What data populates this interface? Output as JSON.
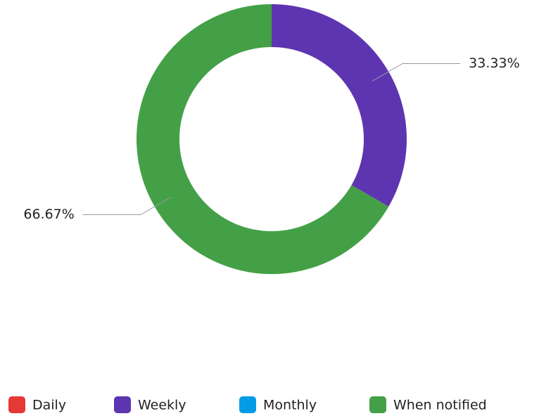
{
  "chart_data": {
    "type": "donut",
    "categories": [
      "Daily",
      "Weekly",
      "Monthly",
      "When notified"
    ],
    "values": [
      0,
      33.33,
      0,
      66.67
    ],
    "value_labels": [
      null,
      "33.33%",
      null,
      "66.67%"
    ],
    "colors": [
      "#e53935",
      "#5e35b1",
      "#039be5",
      "#43a047"
    ],
    "legend": "bottom"
  }
}
